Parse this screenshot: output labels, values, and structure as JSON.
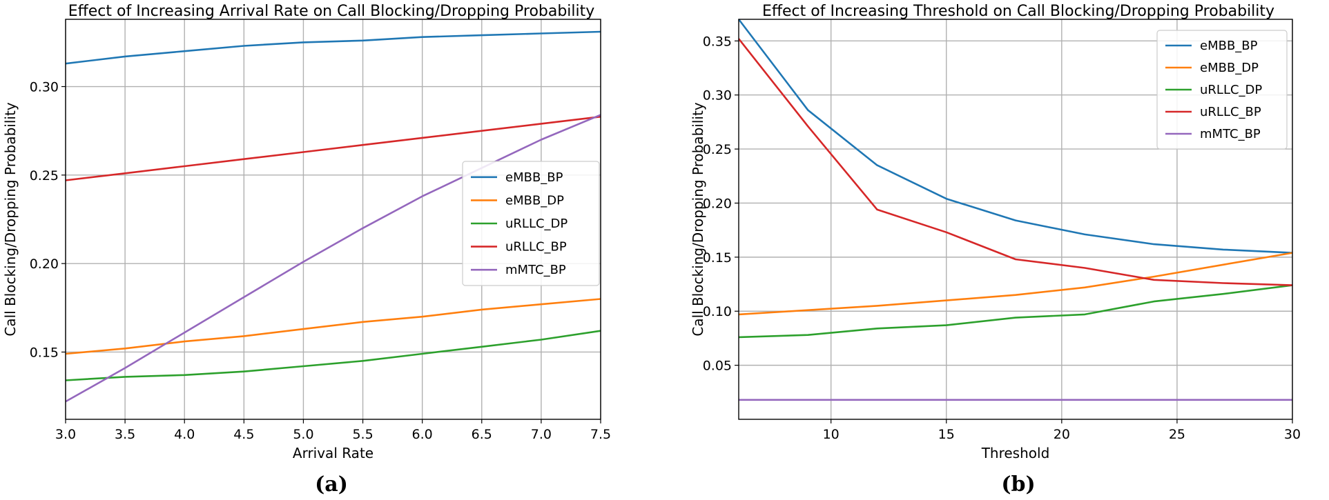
{
  "chart_data": [
    {
      "id": "a",
      "type": "line",
      "title": "Effect of Increasing Arrival Rate on Call Blocking/Dropping Probability",
      "xlabel": "Arrival Rate",
      "ylabel": "Call Blocking/Dropping Probability",
      "caption": "(a)",
      "xlim": [
        3.0,
        7.5
      ],
      "ylim": [
        0.112,
        0.338
      ],
      "grid": true,
      "legend_position": "center-right",
      "xticks": [
        3.0,
        3.5,
        4.0,
        4.5,
        5.0,
        5.5,
        6.0,
        6.5,
        7.0,
        7.5
      ],
      "xtick_labels": [
        "3.0",
        "3.5",
        "4.0",
        "4.5",
        "5.0",
        "5.5",
        "6.0",
        "6.5",
        "7.0",
        "7.5"
      ],
      "yticks": [
        0.15,
        0.2,
        0.25,
        0.3
      ],
      "ytick_labels": [
        "0.15",
        "0.20",
        "0.25",
        "0.30"
      ],
      "x": [
        3.0,
        3.5,
        4.0,
        4.5,
        5.0,
        5.5,
        6.0,
        6.5,
        7.0,
        7.5
      ],
      "series": [
        {
          "name": "eMBB_BP",
          "color": "#1f77b4",
          "values": [
            0.313,
            0.317,
            0.32,
            0.323,
            0.325,
            0.326,
            0.328,
            0.329,
            0.33,
            0.331
          ]
        },
        {
          "name": "eMBB_DP",
          "color": "#ff7f0e",
          "values": [
            0.149,
            0.152,
            0.156,
            0.159,
            0.163,
            0.167,
            0.17,
            0.174,
            0.177,
            0.18
          ]
        },
        {
          "name": "uRLLC_DP",
          "color": "#2ca02c",
          "values": [
            0.134,
            0.136,
            0.137,
            0.139,
            0.142,
            0.145,
            0.149,
            0.153,
            0.157,
            0.162
          ]
        },
        {
          "name": "uRLLC_BP",
          "color": "#d62728",
          "values": [
            0.247,
            0.251,
            0.255,
            0.259,
            0.263,
            0.267,
            0.271,
            0.275,
            0.279,
            0.283
          ]
        },
        {
          "name": "mMTC_BP",
          "color": "#9467bd",
          "values": [
            0.122,
            0.141,
            0.161,
            0.181,
            0.201,
            0.22,
            0.238,
            0.254,
            0.27,
            0.284
          ]
        }
      ]
    },
    {
      "id": "b",
      "type": "line",
      "title": "Effect of Increasing Threshold on Call Blocking/Dropping Probability",
      "xlabel": "Threshold",
      "ylabel": "Call Blocking/Dropping Probability",
      "caption": "(b)",
      "xlim": [
        6,
        30
      ],
      "ylim": [
        0.0,
        0.37
      ],
      "grid": true,
      "legend_position": "top-right",
      "xticks": [
        10,
        15,
        20,
        25,
        30
      ],
      "xtick_labels": [
        "10",
        "15",
        "20",
        "25",
        "30"
      ],
      "yticks": [
        0.05,
        0.1,
        0.15,
        0.2,
        0.25,
        0.3,
        0.35
      ],
      "ytick_labels": [
        "0.05",
        "0.10",
        "0.15",
        "0.20",
        "0.25",
        "0.30",
        "0.35"
      ],
      "x": [
        6,
        9,
        12,
        15,
        18,
        21,
        24,
        27,
        30
      ],
      "series": [
        {
          "name": "eMBB_BP",
          "color": "#1f77b4",
          "values": [
            0.37,
            0.286,
            0.235,
            0.204,
            0.184,
            0.171,
            0.162,
            0.157,
            0.154
          ]
        },
        {
          "name": "eMBB_DP",
          "color": "#ff7f0e",
          "values": [
            0.097,
            0.101,
            0.105,
            0.11,
            0.115,
            0.122,
            0.132,
            0.143,
            0.154
          ]
        },
        {
          "name": "uRLLC_DP",
          "color": "#2ca02c",
          "values": [
            0.076,
            0.078,
            0.084,
            0.087,
            0.094,
            0.097,
            0.109,
            0.116,
            0.124
          ]
        },
        {
          "name": "uRLLC_BP",
          "color": "#d62728",
          "values": [
            0.352,
            0.271,
            0.194,
            0.173,
            0.148,
            0.14,
            0.129,
            0.126,
            0.124
          ]
        },
        {
          "name": "mMTC_BP",
          "color": "#9467bd",
          "values": [
            0.018,
            0.018,
            0.018,
            0.018,
            0.018,
            0.018,
            0.018,
            0.018,
            0.018
          ]
        }
      ]
    }
  ]
}
